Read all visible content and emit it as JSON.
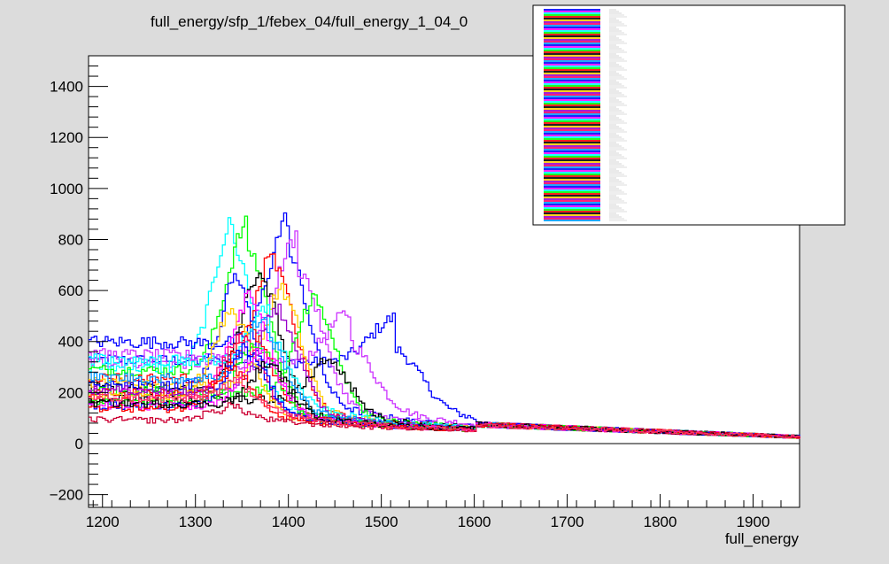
{
  "chart_data": {
    "type": "line",
    "title": "full_energy/sfp_1/febex_04/full_energy_1_04_0",
    "xlabel": "full_energy",
    "ylabel": "",
    "xlim": [
      1185,
      1950
    ],
    "ylim": [
      -250,
      1520
    ],
    "x_ticks": [
      1200,
      1300,
      1400,
      1500,
      1600,
      1700,
      1800,
      1900
    ],
    "y_ticks": [
      -200,
      0,
      200,
      400,
      600,
      800,
      1000,
      1200,
      1400
    ],
    "grid": false,
    "legend_position": "top-right",
    "colors": {
      "frame_bg": "#dcdcdc",
      "plot_bg": "#ffffff",
      "series_palette": [
        "#0000ff",
        "#ff00ff",
        "#00ffff",
        "#00ff00",
        "#ff0000",
        "#000000",
        "#ffcc00",
        "#9900cc",
        "#ff0066",
        "#0099ff"
      ]
    },
    "series": [
      {
        "color": "#0000ff",
        "peak_x": 1515,
        "peak_y": 410,
        "width": 38,
        "base_y": 330
      },
      {
        "color": "#cc33ff",
        "peak_x": 1465,
        "peak_y": 430,
        "width": 35,
        "base_y": 320
      },
      {
        "color": "#00ffff",
        "peak_x": 1340,
        "peak_y": 790,
        "width": 30,
        "base_y": 300
      },
      {
        "color": "#00ff00",
        "peak_x": 1355,
        "peak_y": 780,
        "width": 32,
        "base_y": 290
      },
      {
        "color": "#0000ff",
        "peak_x": 1400,
        "peak_y": 780,
        "width": 30,
        "base_y": 400
      },
      {
        "color": "#cc33ff",
        "peak_x": 1410,
        "peak_y": 720,
        "width": 34,
        "base_y": 350
      },
      {
        "color": "#ff0000",
        "peak_x": 1385,
        "peak_y": 690,
        "width": 30,
        "base_y": 260
      },
      {
        "color": "#000000",
        "peak_x": 1370,
        "peak_y": 620,
        "width": 30,
        "base_y": 220
      },
      {
        "color": "#ffcc00",
        "peak_x": 1395,
        "peak_y": 560,
        "width": 28,
        "base_y": 240
      },
      {
        "color": "#0000ff",
        "peak_x": 1345,
        "peak_y": 600,
        "width": 26,
        "base_y": 230
      },
      {
        "color": "#ff00ff",
        "peak_x": 1360,
        "peak_y": 530,
        "width": 30,
        "base_y": 200
      },
      {
        "color": "#00ff00",
        "peak_x": 1430,
        "peak_y": 520,
        "width": 30,
        "base_y": 210
      },
      {
        "color": "#000000",
        "peak_x": 1445,
        "peak_y": 300,
        "width": 30,
        "base_y": 180
      },
      {
        "color": "#00ffff",
        "peak_x": 1380,
        "peak_y": 450,
        "width": 28,
        "base_y": 330
      },
      {
        "color": "#ff0000",
        "peak_x": 1360,
        "peak_y": 420,
        "width": 30,
        "base_y": 200
      },
      {
        "color": "#ffcc00",
        "peak_x": 1340,
        "peak_y": 470,
        "width": 30,
        "base_y": 190
      },
      {
        "color": "#9900cc",
        "peak_x": 1390,
        "peak_y": 480,
        "width": 30,
        "base_y": 210
      },
      {
        "color": "#0099ff",
        "peak_x": 1375,
        "peak_y": 430,
        "width": 30,
        "base_y": 260
      },
      {
        "color": "#ff0066",
        "peak_x": 1350,
        "peak_y": 380,
        "width": 30,
        "base_y": 170
      },
      {
        "color": "#00ff00",
        "peak_x": 1365,
        "peak_y": 360,
        "width": 30,
        "base_y": 160
      },
      {
        "color": "#0000ff",
        "peak_x": 1355,
        "peak_y": 340,
        "width": 30,
        "base_y": 150
      },
      {
        "color": "#ff00ff",
        "peak_x": 1370,
        "peak_y": 320,
        "width": 30,
        "base_y": 150
      },
      {
        "color": "#ff0000",
        "peak_x": 1340,
        "peak_y": 260,
        "width": 30,
        "base_y": 140
      },
      {
        "color": "#000000",
        "peak_x": 1380,
        "peak_y": 280,
        "width": 28,
        "base_y": 160
      },
      {
        "color": "#cc0033",
        "peak_x": 1330,
        "peak_y": 110,
        "width": 30,
        "base_y": 95
      },
      {
        "color": "#ff3366",
        "peak_x": 1350,
        "peak_y": 200,
        "width": 30,
        "base_y": 180
      }
    ]
  },
  "legend": {
    "entry_count": 120
  }
}
